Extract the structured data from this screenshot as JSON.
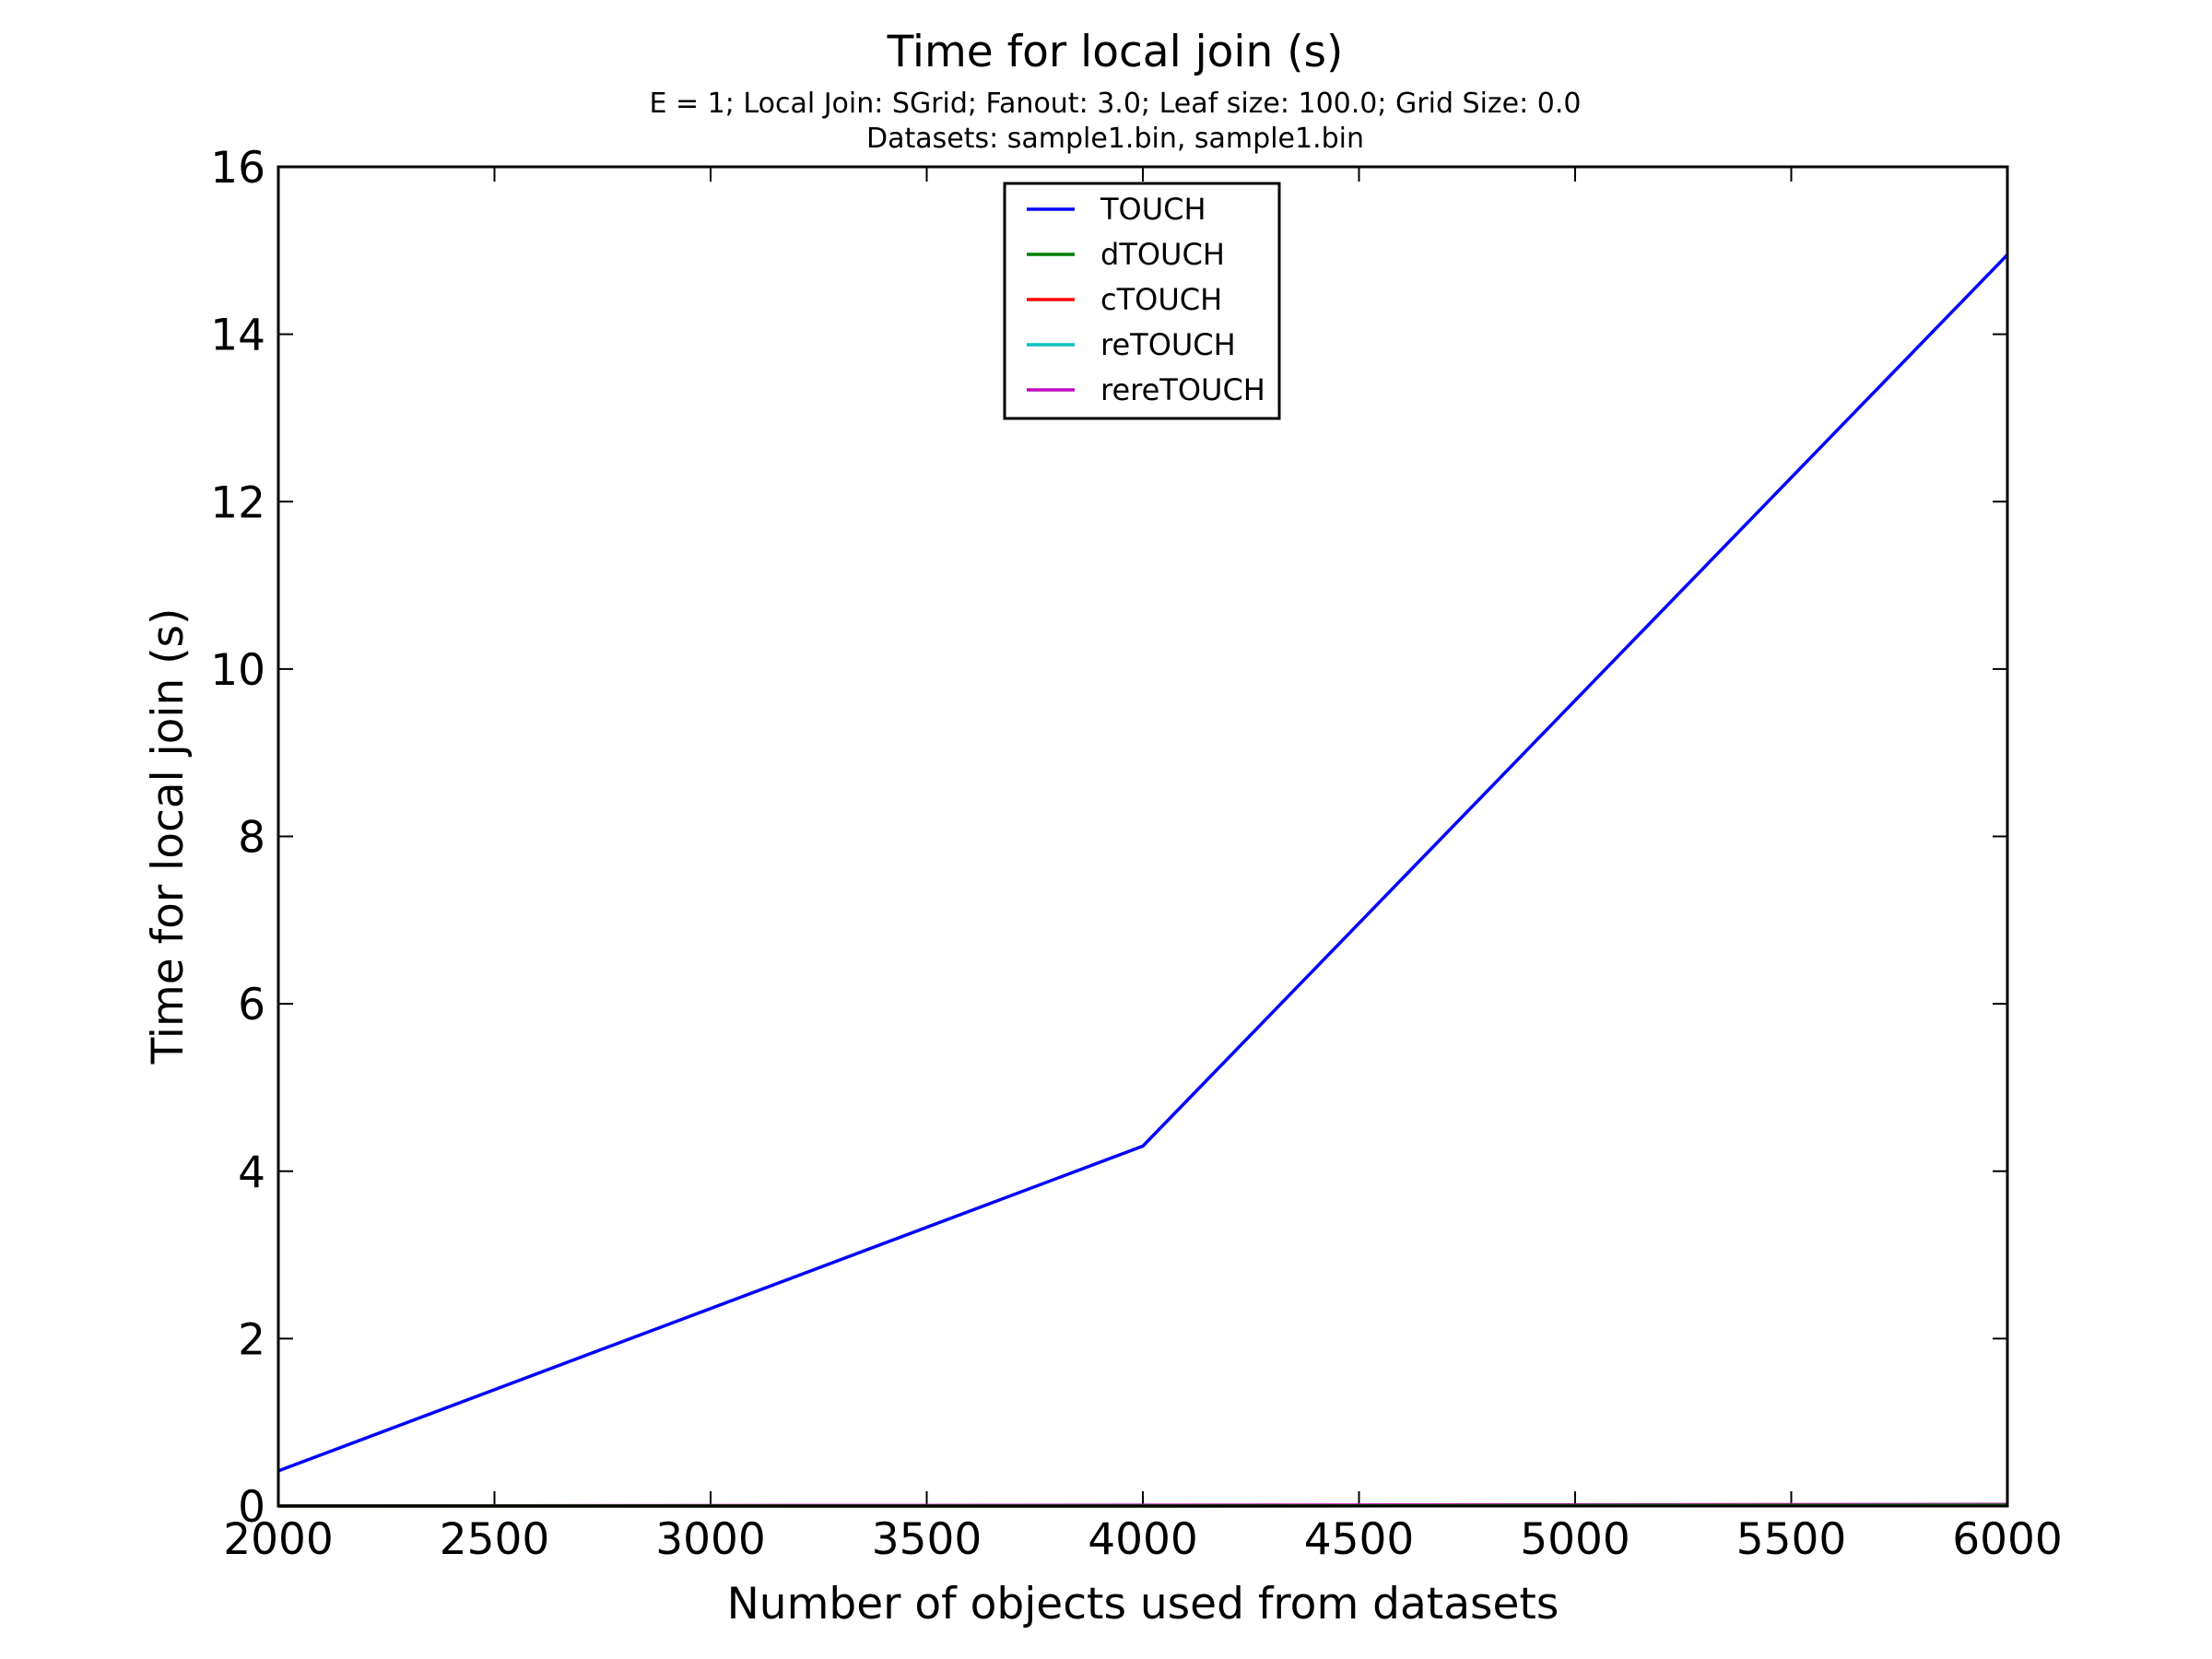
{
  "chart_data": {
    "type": "line",
    "title": "Time for local join (s)",
    "subtitle_lines": [
      "E = 1; Local Join: SGrid; Fanout: 3.0; Leaf size: 100.0; Grid Size: 0.0",
      "Datasets: sample1.bin, sample1.bin"
    ],
    "xlabel": "Number of objects used from datasets",
    "ylabel": "Time for local join (s)",
    "xlim": [
      2000,
      6000
    ],
    "ylim": [
      0,
      16
    ],
    "xticks": [
      2000,
      2500,
      3000,
      3500,
      4000,
      4500,
      5000,
      5500,
      6000
    ],
    "yticks": [
      0,
      2,
      4,
      6,
      8,
      10,
      12,
      14,
      16
    ],
    "grid": false,
    "legend_position": "upper-center",
    "x": [
      2000,
      4000,
      6000
    ],
    "series": [
      {
        "name": "TOUCH",
        "color": "#0000ff",
        "values": [
          0.42,
          4.3,
          14.95
        ]
      },
      {
        "name": "dTOUCH",
        "color": "#008000",
        "values": [
          0.0,
          0.0,
          0.01
        ]
      },
      {
        "name": "cTOUCH",
        "color": "#ff0000",
        "values": [
          0.0,
          0.0,
          0.01
        ]
      },
      {
        "name": "reTOUCH",
        "color": "#00bfbf",
        "values": [
          0.0,
          0.0,
          0.01
        ]
      },
      {
        "name": "rereTOUCH",
        "color": "#bf00bf",
        "values": [
          0.0,
          0.01,
          0.02
        ]
      }
    ]
  }
}
